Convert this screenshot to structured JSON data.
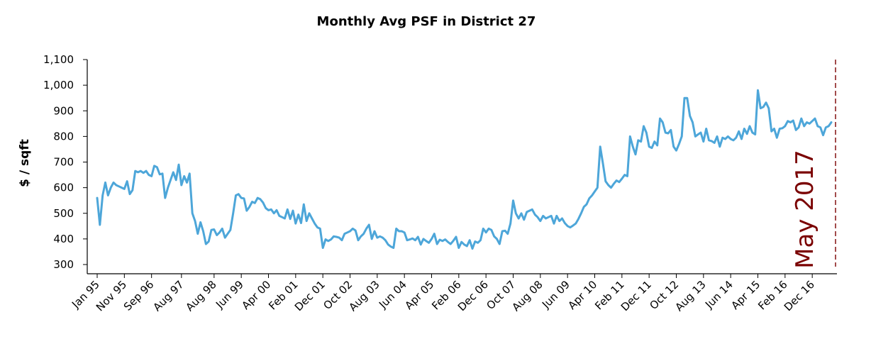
{
  "chart_data": {
    "type": "line",
    "title": "Monthly Avg PSF in District 27",
    "xlabel": "",
    "ylabel": "$ / sqft",
    "ylim": [
      300,
      1100
    ],
    "yticks": [
      "300",
      "400",
      "500",
      "600",
      "700",
      "800",
      "900",
      "1,000",
      "1,100"
    ],
    "ytick_values": [
      300,
      400,
      500,
      600,
      700,
      800,
      900,
      1000,
      1100
    ],
    "grid": false,
    "legend": "none",
    "x_start": "Jan 95",
    "x_end": "Apr 17",
    "x_tick_labels": [
      {
        "label": "Jan 95",
        "month_index": 0
      },
      {
        "label": "Nov 95",
        "month_index": 10
      },
      {
        "label": "Sep 96",
        "month_index": 20
      },
      {
        "label": "Aug 97",
        "month_index": 31
      },
      {
        "label": "Aug 98",
        "month_index": 43
      },
      {
        "label": "Jun 99",
        "month_index": 53
      },
      {
        "label": "Apr 00",
        "month_index": 63
      },
      {
        "label": "Feb 01",
        "month_index": 73
      },
      {
        "label": "Dec 01",
        "month_index": 83
      },
      {
        "label": "Oct 02",
        "month_index": 93
      },
      {
        "label": "Aug 03",
        "month_index": 103
      },
      {
        "label": "Jun 04",
        "month_index": 113
      },
      {
        "label": "Apr 05",
        "month_index": 123
      },
      {
        "label": "Feb 06",
        "month_index": 133
      },
      {
        "label": "Dec 06",
        "month_index": 143
      },
      {
        "label": "Oct 07",
        "month_index": 153
      },
      {
        "label": "Aug 08",
        "month_index": 163
      },
      {
        "label": "Jun 09",
        "month_index": 173
      },
      {
        "label": "Apr 10",
        "month_index": 183
      },
      {
        "label": "Feb 11",
        "month_index": 193
      },
      {
        "label": "Dec 11",
        "month_index": 203
      },
      {
        "label": "Oct 12",
        "month_index": 213
      },
      {
        "label": "Aug 13",
        "month_index": 223
      },
      {
        "label": "Jun 14",
        "month_index": 233
      },
      {
        "label": "Apr 15",
        "month_index": 243
      },
      {
        "label": "Feb 16",
        "month_index": 253
      },
      {
        "label": "Dec 16",
        "month_index": 263
      }
    ],
    "annotation": {
      "text": "May 2017"
    },
    "colors": {
      "line": "#4da6d9",
      "annotation": "#7a0000",
      "axis": "#000000"
    },
    "series": [
      {
        "name": "",
        "values": [
          560,
          455,
          570,
          620,
          570,
          600,
          620,
          610,
          605,
          600,
          595,
          625,
          575,
          590,
          665,
          660,
          665,
          658,
          665,
          650,
          645,
          685,
          680,
          652,
          655,
          560,
          600,
          630,
          660,
          630,
          690,
          610,
          645,
          620,
          655,
          500,
          470,
          420,
          465,
          430,
          380,
          390,
          435,
          437,
          415,
          425,
          440,
          405,
          420,
          435,
          500,
          570,
          575,
          560,
          558,
          510,
          525,
          545,
          540,
          560,
          555,
          542,
          520,
          512,
          515,
          500,
          512,
          490,
          485,
          480,
          515,
          478,
          510,
          460,
          495,
          462,
          535,
          470,
          500,
          480,
          460,
          445,
          440,
          365,
          398,
          392,
          398,
          410,
          408,
          405,
          395,
          420,
          425,
          430,
          440,
          433,
          395,
          410,
          420,
          440,
          455,
          400,
          430,
          405,
          410,
          405,
          395,
          378,
          370,
          365,
          440,
          430,
          430,
          425,
          395,
          398,
          402,
          395,
          408,
          378,
          400,
          392,
          385,
          400,
          420,
          380,
          397,
          392,
          398,
          388,
          380,
          393,
          408,
          365,
          388,
          378,
          372,
          395,
          362,
          390,
          385,
          395,
          440,
          425,
          440,
          435,
          410,
          400,
          380,
          430,
          432,
          420,
          460,
          550,
          500,
          480,
          500,
          475,
          505,
          510,
          515,
          495,
          485,
          470,
          490,
          480,
          485,
          490,
          460,
          490,
          470,
          480,
          462,
          450,
          445,
          452,
          460,
          478,
          500,
          525,
          535,
          558,
          570,
          585,
          600,
          760,
          695,
          625,
          610,
          600,
          615,
          628,
          622,
          635,
          650,
          645,
          800,
          760,
          730,
          785,
          780,
          840,
          815,
          760,
          755,
          780,
          765,
          870,
          855,
          815,
          812,
          825,
          760,
          745,
          770,
          800,
          950,
          950,
          880,
          855,
          800,
          808,
          815,
          780,
          830,
          785,
          782,
          775,
          800,
          760,
          795,
          790,
          800,
          790,
          785,
          795,
          820,
          790,
          830,
          810,
          840,
          815,
          808,
          980,
          910,
          915,
          932,
          910,
          820,
          830,
          795,
          830,
          832,
          840,
          860,
          855,
          862,
          825,
          835,
          870,
          840,
          855,
          850,
          860,
          870,
          840,
          835,
          805,
          835,
          840,
          855
        ]
      }
    ]
  }
}
